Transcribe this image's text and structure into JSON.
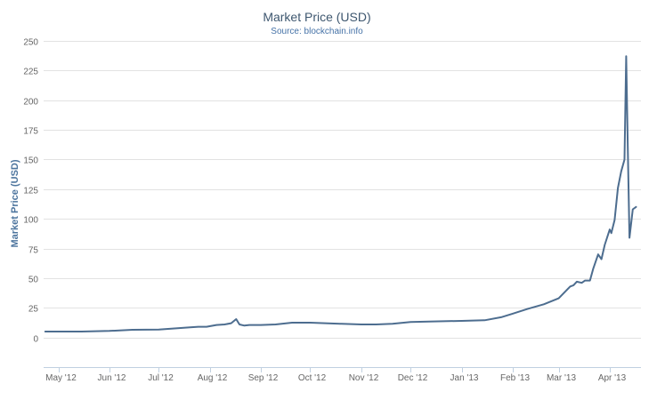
{
  "chart_data": {
    "type": "line",
    "title": "Market Price (USD)",
    "subtitle": "Source: blockchain.info",
    "xlabel": "",
    "ylabel": "Market Price (USD)",
    "ylim": [
      -25,
      250
    ],
    "yticks": [
      0,
      25,
      50,
      75,
      100,
      125,
      150,
      175,
      200,
      225,
      250
    ],
    "grid": true,
    "legend": "none",
    "colors": {
      "line": "#4d6d8f",
      "grid": "#e2e2e2",
      "axis": "#c0d0e0",
      "title": "#3e576f",
      "subtitle": "#4572a7",
      "tick": "#666666"
    },
    "xtick_labels": [
      {
        "date": "2012-05-01",
        "label": "May '12"
      },
      {
        "date": "2012-06-01",
        "label": "Jun '12"
      },
      {
        "date": "2012-07-01",
        "label": "Jul '12"
      },
      {
        "date": "2012-08-01",
        "label": "Aug '12"
      },
      {
        "date": "2012-09-01",
        "label": "Sep '12"
      },
      {
        "date": "2012-10-01",
        "label": "Oct '12"
      },
      {
        "date": "2012-11-01",
        "label": "Nov '12"
      },
      {
        "date": "2012-12-01",
        "label": "Dec '12"
      },
      {
        "date": "2013-01-01",
        "label": "Jan '13"
      },
      {
        "date": "2013-02-01",
        "label": "Feb '13"
      },
      {
        "date": "2013-03-01",
        "label": "Mar '13"
      },
      {
        "date": "2013-04-01",
        "label": "Apr '13"
      }
    ],
    "xlim": [
      "2012-04-22",
      "2013-04-20"
    ],
    "series": [
      {
        "x": [
          "2012-04-23",
          "2012-05-01",
          "2012-05-15",
          "2012-06-01",
          "2012-06-15",
          "2012-07-01",
          "2012-07-20",
          "2012-07-25",
          "2012-07-30",
          "2012-08-05",
          "2012-08-10",
          "2012-08-14",
          "2012-08-17",
          "2012-08-19",
          "2012-08-22",
          "2012-08-25",
          "2012-09-01",
          "2012-09-10",
          "2012-09-20",
          "2012-10-01",
          "2012-10-10",
          "2012-10-20",
          "2012-11-01",
          "2012-11-10",
          "2012-11-20",
          "2012-12-01",
          "2012-12-15",
          "2013-01-01",
          "2013-01-15",
          "2013-01-25",
          "2013-02-01",
          "2013-02-10",
          "2013-02-20",
          "2013-03-01",
          "2013-03-08",
          "2013-03-10",
          "2013-03-12",
          "2013-03-15",
          "2013-03-17",
          "2013-03-20",
          "2013-03-22",
          "2013-03-25",
          "2013-03-27",
          "2013-03-29",
          "2013-04-01",
          "2013-04-02",
          "2013-04-04",
          "2013-04-06",
          "2013-04-08",
          "2013-04-10",
          "2013-04-11",
          "2013-04-12",
          "2013-04-13",
          "2013-04-15",
          "2013-04-17"
        ],
        "values": [
          5,
          5,
          5,
          5.5,
          6.5,
          6.7,
          8.5,
          9,
          9,
          10.5,
          11,
          12,
          15.5,
          11,
          10,
          10.5,
          10.5,
          11,
          12.5,
          12.5,
          12,
          11.5,
          11,
          11,
          11.5,
          13,
          13.5,
          14,
          14.5,
          17,
          20,
          24,
          28,
          33,
          43,
          44,
          47,
          46,
          48,
          48,
          58,
          70,
          66,
          78,
          91,
          88,
          99,
          126,
          140,
          150,
          237,
          160,
          84,
          108,
          110
        ]
      }
    ]
  }
}
